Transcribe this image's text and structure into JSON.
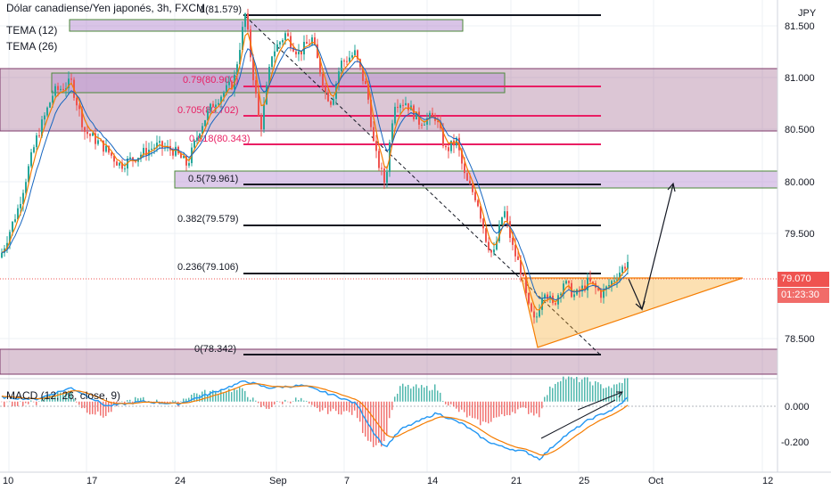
{
  "legend": {
    "title": "Dólar canadiense/Yen japonés, 3h, FXCM",
    "indicators": [
      "TEMA (12)",
      "TEMA (26)"
    ],
    "macd": "MACD (12, 26, close, 9)"
  },
  "price_axis": {
    "currency": "JPY",
    "ticks": [
      "81.500",
      "81.000",
      "80.500",
      "80.000",
      "79.500",
      "78.500"
    ],
    "current_price": "79.070",
    "countdown": "01:23:30"
  },
  "macd_axis": {
    "ticks": [
      "0.000",
      "-0.200"
    ]
  },
  "time_axis": {
    "ticks": [
      "10",
      "17",
      "24",
      "Sep",
      "7",
      "14",
      "21",
      "25",
      "Oct",
      "12"
    ]
  },
  "fib_labels": [
    {
      "text": "1(81.579)",
      "color": "#131722"
    },
    {
      "text": "0.79(80.900)",
      "color": "#e91e63"
    },
    {
      "text": "0.705(80.702)",
      "color": "#e91e63"
    },
    {
      "text": "0.618(80.343)",
      "color": "#e91e63"
    },
    {
      "text": "0.5(79.961)",
      "color": "#131722"
    },
    {
      "text": "0.382(79.579)",
      "color": "#131722"
    },
    {
      "text": "0.236(79.106)",
      "color": "#131722"
    },
    {
      "text": "0(78.342)",
      "color": "#131722"
    }
  ],
  "chart_data": {
    "type": "candlestick",
    "symbol": "CAD/JPY",
    "ylim": [
      77.9,
      81.75
    ],
    "fib_levels": [
      81.579,
      80.9,
      80.702,
      80.343,
      79.961,
      79.579,
      79.106,
      78.342
    ],
    "current_price": 79.07,
    "zones": [
      {
        "from": 80.48,
        "to": 81.08
      },
      {
        "from": 79.93,
        "to": 80.1
      },
      {
        "from": 78.12,
        "to": 78.38
      }
    ],
    "price_path": [
      [
        0,
        79.1
      ],
      [
        20,
        79.6
      ],
      [
        40,
        80.3
      ],
      [
        60,
        80.8
      ],
      [
        80,
        80.9
      ],
      [
        95,
        80.4
      ],
      [
        115,
        80.25
      ],
      [
        135,
        80.05
      ],
      [
        155,
        80.15
      ],
      [
        175,
        80.25
      ],
      [
        195,
        80.2
      ],
      [
        210,
        80.05
      ],
      [
        225,
        80.45
      ],
      [
        240,
        80.7
      ],
      [
        262,
        80.9
      ],
      [
        275,
        81.6
      ],
      [
        285,
        80.9
      ],
      [
        292,
        80.4
      ],
      [
        305,
        81.2
      ],
      [
        320,
        81.4
      ],
      [
        335,
        81.2
      ],
      [
        350,
        81.35
      ],
      [
        365,
        80.8
      ],
      [
        372,
        80.7
      ],
      [
        382,
        81.1
      ],
      [
        398,
        81.2
      ],
      [
        412,
        80.8
      ],
      [
        420,
        80.2
      ],
      [
        432,
        79.85
      ],
      [
        442,
        80.7
      ],
      [
        455,
        80.7
      ],
      [
        470,
        80.5
      ],
      [
        488,
        80.55
      ],
      [
        500,
        80.2
      ],
      [
        512,
        80.3
      ],
      [
        522,
        79.9
      ],
      [
        535,
        79.7
      ],
      [
        545,
        79.3
      ],
      [
        553,
        79.1
      ],
      [
        565,
        79.6
      ],
      [
        575,
        79.2
      ],
      [
        585,
        78.95
      ],
      [
        592,
        78.6
      ],
      [
        600,
        78.42
      ],
      [
        610,
        78.8
      ],
      [
        620,
        78.6
      ],
      [
        632,
        78.85
      ],
      [
        645,
        78.7
      ],
      [
        660,
        78.85
      ],
      [
        675,
        78.72
      ],
      [
        690,
        78.9
      ],
      [
        705,
        79.07
      ]
    ],
    "macd": {
      "zero_line": 0,
      "ylim": [
        -0.3,
        0.1
      ],
      "path": [
        [
          0,
          0.02
        ],
        [
          40,
          0.01
        ],
        [
          80,
          0.06
        ],
        [
          120,
          -0.02
        ],
        [
          160,
          0.0
        ],
        [
          200,
          -0.01
        ],
        [
          240,
          0.04
        ],
        [
          275,
          0.09
        ],
        [
          300,
          0.06
        ],
        [
          340,
          0.07
        ],
        [
          380,
          0.02
        ],
        [
          400,
          -0.01
        ],
        [
          420,
          -0.14
        ],
        [
          432,
          -0.2
        ],
        [
          450,
          -0.12
        ],
        [
          490,
          -0.05
        ],
        [
          520,
          -0.1
        ],
        [
          545,
          -0.17
        ],
        [
          565,
          -0.2
        ],
        [
          590,
          -0.22
        ],
        [
          605,
          -0.25
        ],
        [
          630,
          -0.16
        ],
        [
          660,
          -0.08
        ],
        [
          690,
          -0.03
        ],
        [
          705,
          0.02
        ]
      ]
    }
  }
}
